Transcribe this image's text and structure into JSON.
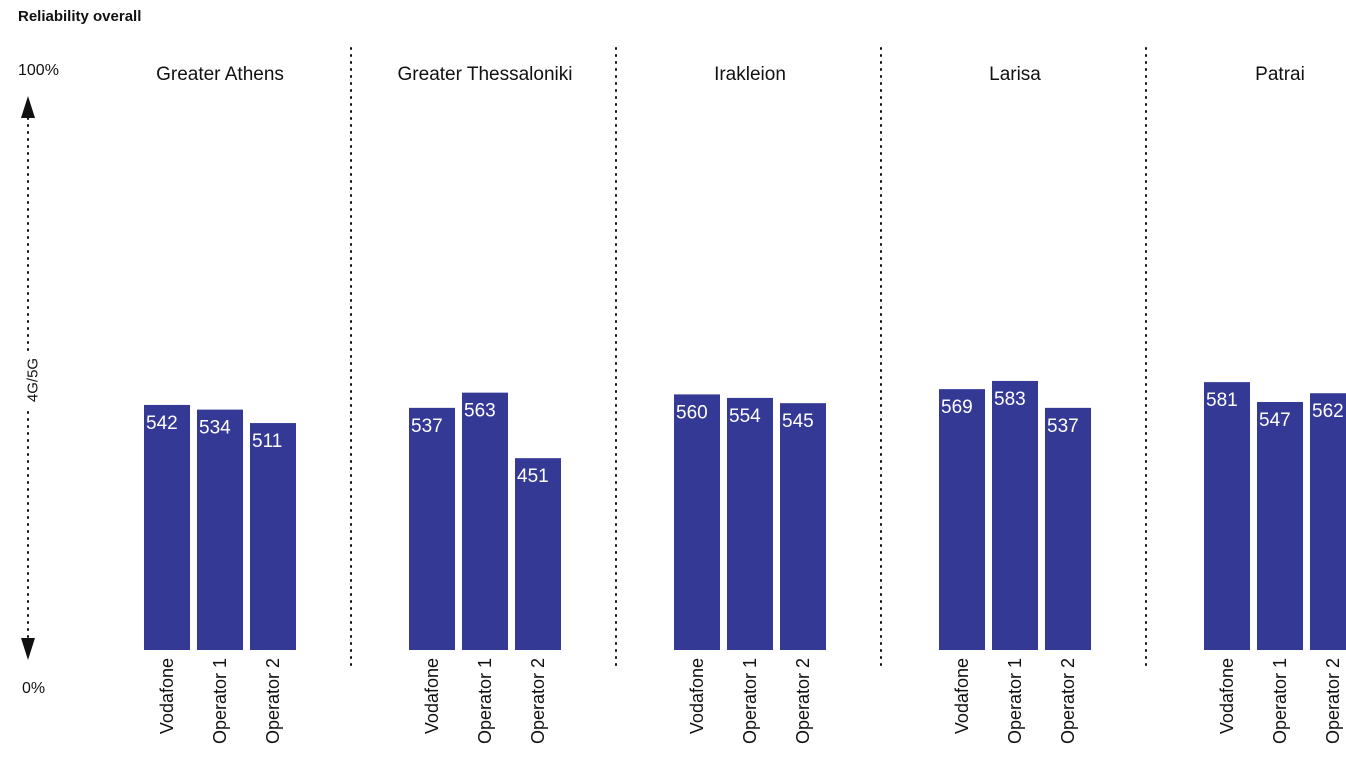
{
  "chart_data": {
    "type": "bar",
    "ylabel": "Reliability overall",
    "y_axis": {
      "top_label": "100%",
      "bottom_label": "0%",
      "sublabel": "4G/5G"
    },
    "series_names": [
      "Vodafone",
      "Operator 1",
      "Operator 2"
    ],
    "bar_color": "#343996",
    "groups": [
      {
        "name": "Greater Athens",
        "values": [
          542,
          534,
          511
        ]
      },
      {
        "name": "Greater Thessaloniki",
        "values": [
          537,
          563,
          451
        ]
      },
      {
        "name": "Irakleion",
        "values": [
          560,
          554,
          545
        ]
      },
      {
        "name": "Larisa",
        "values": [
          569,
          583,
          537
        ]
      },
      {
        "name": "Patrai",
        "values": [
          581,
          547,
          562
        ]
      }
    ]
  }
}
